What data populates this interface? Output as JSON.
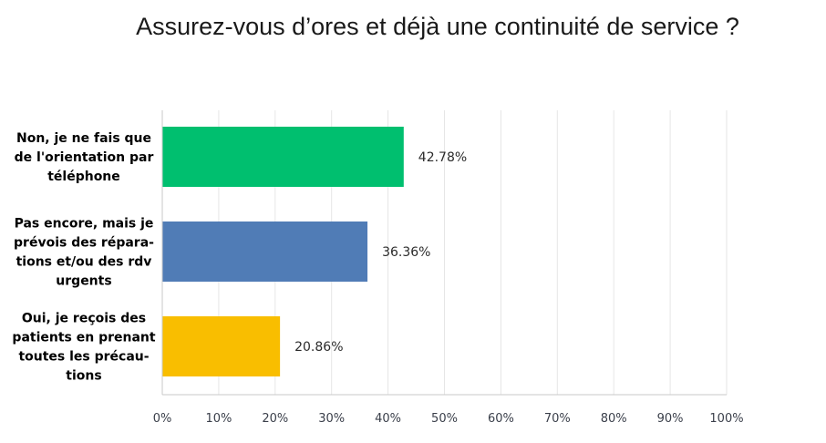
{
  "chart_data": {
    "type": "bar",
    "orientation": "horizontal",
    "title": "Assurez-vous d’ores et déjà une continuité de service ?",
    "categories": [
      [
        "Non, je ne fais que",
        "de l'orientation par",
        "téléphone"
      ],
      [
        "Pas encore, mais je",
        "prévois des répara-",
        "tions et/ou des rdv",
        "urgents"
      ],
      [
        "Oui, je reçois des",
        "patients  en prenant",
        "toutes les précau-",
        "tions"
      ]
    ],
    "values": [
      42.78,
      36.36,
      20.86
    ],
    "value_labels": [
      "42.78%",
      "36.36%",
      "20.86%"
    ],
    "colors": [
      "#00bf6f",
      "#507cb6",
      "#f9be00"
    ],
    "xlim": [
      0,
      100
    ],
    "xticks": [
      "0%",
      "10%",
      "20%",
      "30%",
      "40%",
      "50%",
      "60%",
      "70%",
      "80%",
      "90%",
      "100%"
    ],
    "grid": true,
    "legend": "none",
    "xlabel": "",
    "ylabel": ""
  }
}
